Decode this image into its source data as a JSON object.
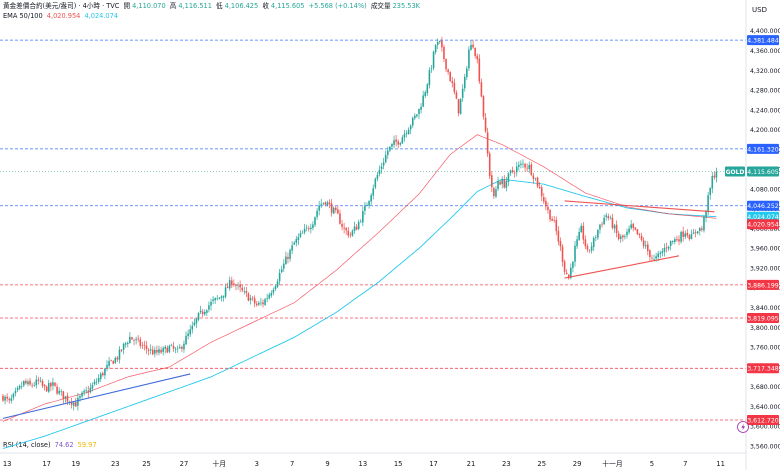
{
  "header": {
    "title": "黃金差價合約(美元/盎司) · 4小時 · TVC",
    "o_label": "開",
    "o_value": "4,110.070",
    "h_label": "高",
    "h_value": "4,116.511",
    "l_label": "低",
    "l_value": "4,106.425",
    "c_label": "收",
    "c_value": "4,115.605",
    "change": "+5.568 (+0.14%)",
    "vol_label": "成交量",
    "vol_value": "235.53K",
    "ema_label": "EMA 50/100",
    "ema50_value": "4,020.954",
    "ema100_value": "4,024.074"
  },
  "rsi": {
    "label": "RSI (14, close)",
    "value": "74.62",
    "ma_value": "59.97"
  },
  "currency": "USD",
  "colors": {
    "up": "#26a69a",
    "down": "#ef5350",
    "ema50": "#f23645",
    "ema100": "#22c8ee",
    "trendline_blue": "#3e6bd8",
    "trendline_red": "#ef5350",
    "level_blue": "#2962ff",
    "level_red": "#f23645"
  },
  "chart_data": {
    "type": "candlestick",
    "symbol": "GOLD",
    "timeframe": "4h",
    "ylim": [
      3548,
      4410
    ],
    "y_ticks": [
      3560,
      3600,
      3640,
      3680,
      3720,
      3760,
      3800,
      3840,
      3880,
      3920,
      3960,
      4000,
      4040,
      4080,
      4120,
      4160,
      4200,
      4240,
      4280,
      4320,
      4360,
      4400
    ],
    "y_tick_labels": [
      "3,560.000",
      "3,600.000",
      "3,640.000",
      "3,680.000",
      "3,720.000",
      "3,760.000",
      "3,800.000",
      "3,840.000",
      "3,880.000",
      "3,920.000",
      "3,960.000",
      "4,000.000",
      "4,040.000",
      "4,080.000",
      "4,120.000",
      "4,160.000",
      "4,200.000",
      "4,240.000",
      "4,280.000",
      "4,320.000",
      "4,360.000",
      "4,400.000"
    ],
    "x_ticks": [
      {
        "label": "13",
        "bar": 2
      },
      {
        "label": "17",
        "bar": 21
      },
      {
        "label": "19",
        "bar": 35
      },
      {
        "label": "23",
        "bar": 54
      },
      {
        "label": "25",
        "bar": 69
      },
      {
        "label": "27",
        "bar": 87
      },
      {
        "label": "十月",
        "bar": 104
      },
      {
        "label": "3",
        "bar": 122
      },
      {
        "label": "7",
        "bar": 139
      },
      {
        "label": "9",
        "bar": 156
      },
      {
        "label": "13",
        "bar": 173
      },
      {
        "label": "15",
        "bar": 190
      },
      {
        "label": "17",
        "bar": 207
      },
      {
        "label": "21",
        "bar": 225
      },
      {
        "label": "23",
        "bar": 242
      },
      {
        "label": "25",
        "bar": 259
      },
      {
        "label": "29",
        "bar": 276
      },
      {
        "label": "十一月",
        "bar": 293
      },
      {
        "label": "5",
        "bar": 312
      },
      {
        "label": "7",
        "bar": 328
      },
      {
        "label": "11",
        "bar": 345
      }
    ],
    "anchors": [
      [
        0,
        3660
      ],
      [
        3,
        3648
      ],
      [
        6,
        3665
      ],
      [
        10,
        3688
      ],
      [
        13,
        3682
      ],
      [
        17,
        3690
      ],
      [
        20,
        3676
      ],
      [
        24,
        3683
      ],
      [
        27,
        3668
      ],
      [
        31,
        3655
      ],
      [
        35,
        3646
      ],
      [
        38,
        3662
      ],
      [
        42,
        3676
      ],
      [
        45,
        3691
      ],
      [
        49,
        3714
      ],
      [
        52,
        3730
      ],
      [
        55,
        3740
      ],
      [
        58,
        3762
      ],
      [
        61,
        3780
      ],
      [
        64,
        3772
      ],
      [
        67,
        3762
      ],
      [
        70,
        3755
      ],
      [
        73,
        3748
      ],
      [
        77,
        3752
      ],
      [
        80,
        3760
      ],
      [
        84,
        3750
      ],
      [
        88,
        3778
      ],
      [
        91,
        3798
      ],
      [
        94,
        3822
      ],
      [
        98,
        3842
      ],
      [
        101,
        3852
      ],
      [
        104,
        3860
      ],
      [
        107,
        3875
      ],
      [
        110,
        3895
      ],
      [
        113,
        3880
      ],
      [
        116,
        3868
      ],
      [
        119,
        3858
      ],
      [
        122,
        3845
      ],
      [
        125,
        3850
      ],
      [
        128,
        3868
      ],
      [
        131,
        3890
      ],
      [
        134,
        3918
      ],
      [
        137,
        3945
      ],
      [
        140,
        3970
      ],
      [
        143,
        3985
      ],
      [
        146,
        3998
      ],
      [
        149,
        4015
      ],
      [
        152,
        4048
      ],
      [
        155,
        4056
      ],
      [
        158,
        4040
      ],
      [
        161,
        4025
      ],
      [
        164,
        3998
      ],
      [
        167,
        3988
      ],
      [
        170,
        4004
      ],
      [
        173,
        4030
      ],
      [
        176,
        4062
      ],
      [
        179,
        4098
      ],
      [
        182,
        4128
      ],
      [
        185,
        4158
      ],
      [
        188,
        4172
      ],
      [
        191,
        4180
      ],
      [
        194,
        4200
      ],
      [
        197,
        4218
      ],
      [
        200,
        4240
      ],
      [
        203,
        4280
      ],
      [
        206,
        4330
      ],
      [
        208,
        4372
      ],
      [
        210,
        4374
      ],
      [
        213,
        4330
      ],
      [
        216,
        4290
      ],
      [
        219,
        4240
      ],
      [
        222,
        4300
      ],
      [
        224,
        4362
      ],
      [
        226,
        4374
      ],
      [
        228,
        4340
      ],
      [
        230,
        4270
      ],
      [
        232,
        4190
      ],
      [
        234,
        4110
      ],
      [
        236,
        4060
      ],
      [
        238,
        4098
      ],
      [
        241,
        4090
      ],
      [
        244,
        4112
      ],
      [
        247,
        4123
      ],
      [
        250,
        4130
      ],
      [
        253,
        4125
      ],
      [
        256,
        4100
      ],
      [
        259,
        4070
      ],
      [
        262,
        4035
      ],
      [
        265,
        4010
      ],
      [
        268,
        3960
      ],
      [
        270,
        3918
      ],
      [
        272,
        3900
      ],
      [
        275,
        3960
      ],
      [
        278,
        3998
      ],
      [
        281,
        3950
      ],
      [
        284,
        3975
      ],
      [
        287,
        4008
      ],
      [
        290,
        4028
      ],
      [
        293,
        4008
      ],
      [
        296,
        3980
      ],
      [
        299,
        3982
      ],
      [
        302,
        4002
      ],
      [
        305,
        3988
      ],
      [
        308,
        3968
      ],
      [
        311,
        3948
      ],
      [
        313,
        3935
      ],
      [
        316,
        3948
      ],
      [
        319,
        3965
      ],
      [
        322,
        3975
      ],
      [
        325,
        3982
      ],
      [
        328,
        3995
      ],
      [
        331,
        3982
      ],
      [
        334,
        4000
      ],
      [
        336,
        3998
      ],
      [
        338,
        4040
      ],
      [
        339,
        4060
      ],
      [
        340,
        4080
      ],
      [
        341,
        4102
      ],
      [
        342,
        4110
      ],
      [
        343,
        4115.605
      ]
    ],
    "ema50_anchors": [
      [
        0,
        3610
      ],
      [
        20,
        3645
      ],
      [
        40,
        3668
      ],
      [
        60,
        3700
      ],
      [
        80,
        3720
      ],
      [
        100,
        3770
      ],
      [
        120,
        3810
      ],
      [
        140,
        3850
      ],
      [
        160,
        3915
      ],
      [
        180,
        3990
      ],
      [
        200,
        4070
      ],
      [
        215,
        4150
      ],
      [
        228,
        4190
      ],
      [
        240,
        4170
      ],
      [
        260,
        4125
      ],
      [
        280,
        4072
      ],
      [
        300,
        4044
      ],
      [
        320,
        4030
      ],
      [
        343,
        4020.954
      ]
    ],
    "ema100_anchors": [
      [
        0,
        3555
      ],
      [
        20,
        3580
      ],
      [
        40,
        3610
      ],
      [
        60,
        3640
      ],
      [
        80,
        3670
      ],
      [
        100,
        3700
      ],
      [
        120,
        3740
      ],
      [
        140,
        3780
      ],
      [
        160,
        3830
      ],
      [
        180,
        3890
      ],
      [
        200,
        3960
      ],
      [
        215,
        4020
      ],
      [
        228,
        4075
      ],
      [
        240,
        4100
      ],
      [
        260,
        4090
      ],
      [
        280,
        4065
      ],
      [
        300,
        4042
      ],
      [
        320,
        4030
      ],
      [
        343,
        4024.074
      ]
    ],
    "trendlines": [
      {
        "color": "blue",
        "from": [
          0,
          3616
        ],
        "to": [
          90,
          3706
        ]
      },
      {
        "color": "red",
        "from": [
          270,
          3900
        ],
        "to": [
          325,
          3945
        ]
      },
      {
        "color": "red",
        "from": [
          270,
          4056
        ],
        "to": [
          342,
          4034
        ]
      }
    ],
    "levels": [
      {
        "price": 4381.484,
        "label": "4,381.484",
        "color": "blue"
      },
      {
        "price": 4161.32,
        "label": "4,161.320",
        "color": "blue"
      },
      {
        "price": 4046.252,
        "label": "4,046.252",
        "color": "blue"
      },
      {
        "price": 3886.199,
        "label": "3,886.199",
        "color": "red"
      },
      {
        "price": 3819.095,
        "label": "3,819.095",
        "color": "red"
      },
      {
        "price": 3717.348,
        "label": "3,717.348",
        "color": "red"
      },
      {
        "price": 3612.72,
        "label": "3,612.720",
        "color": "red"
      }
    ],
    "price_tags": [
      {
        "price": 4115.605,
        "text": "GOLD",
        "value": "4,115.605",
        "color": "up"
      },
      {
        "price": 4024.074,
        "value": "4,024.074",
        "color": "ema100"
      },
      {
        "price": 4020.954,
        "value": "4,020.954",
        "color": "ema50"
      }
    ]
  }
}
